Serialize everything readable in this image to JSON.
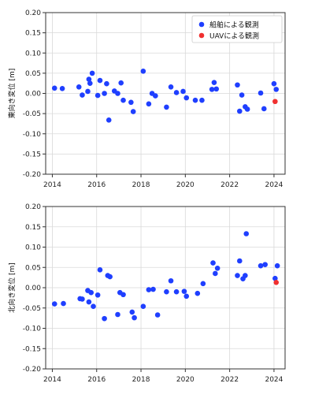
{
  "colors": {
    "ship": "#1f3fff",
    "uav": "#f03030",
    "grid": "#d9d9d9",
    "axis": "#333333"
  },
  "chart_data": [
    {
      "type": "scatter",
      "ylabel": "東向き変位 [m]",
      "xlim": [
        2013.7,
        2024.5
      ],
      "ylim": [
        -0.2,
        0.2
      ],
      "xticks": [
        2014,
        2016,
        2018,
        2020,
        2022,
        2024
      ],
      "yticks": [
        -0.2,
        -0.15,
        -0.1,
        -0.05,
        0.0,
        0.05,
        0.1,
        0.15,
        0.2
      ],
      "grid": true,
      "legend": "top-right",
      "series": [
        {
          "name": "船舶による観測",
          "color": "#1f3fff",
          "points": [
            [
              2014.1,
              0.013
            ],
            [
              2014.45,
              0.012
            ],
            [
              2015.2,
              0.016
            ],
            [
              2015.35,
              -0.004
            ],
            [
              2015.6,
              0.005
            ],
            [
              2015.65,
              0.035
            ],
            [
              2015.7,
              0.025
            ],
            [
              2015.8,
              0.05
            ],
            [
              2016.05,
              -0.005
            ],
            [
              2016.15,
              0.032
            ],
            [
              2016.35,
              0.0
            ],
            [
              2016.45,
              0.024
            ],
            [
              2016.55,
              -0.066
            ],
            [
              2016.8,
              0.006
            ],
            [
              2016.95,
              0.0
            ],
            [
              2017.1,
              0.026
            ],
            [
              2017.2,
              -0.017
            ],
            [
              2017.55,
              -0.022
            ],
            [
              2017.65,
              -0.045
            ],
            [
              2018.1,
              0.055
            ],
            [
              2018.35,
              -0.026
            ],
            [
              2018.5,
              0.0
            ],
            [
              2018.65,
              -0.006
            ],
            [
              2019.15,
              -0.034
            ],
            [
              2019.35,
              0.016
            ],
            [
              2019.6,
              0.002
            ],
            [
              2019.9,
              0.005
            ],
            [
              2020.05,
              -0.011
            ],
            [
              2020.45,
              -0.017
            ],
            [
              2020.75,
              -0.017
            ],
            [
              2021.2,
              0.01
            ],
            [
              2021.3,
              0.027
            ],
            [
              2021.4,
              0.011
            ],
            [
              2022.35,
              0.021
            ],
            [
              2022.45,
              -0.044
            ],
            [
              2022.55,
              -0.004
            ],
            [
              2022.7,
              -0.033
            ],
            [
              2022.8,
              -0.039
            ],
            [
              2023.4,
              0.001
            ],
            [
              2023.55,
              -0.038
            ],
            [
              2024.0,
              0.024
            ],
            [
              2024.1,
              0.01
            ]
          ]
        },
        {
          "name": "UAVによる観測",
          "color": "#f03030",
          "points": [
            [
              2024.05,
              -0.02
            ]
          ]
        }
      ]
    },
    {
      "type": "scatter",
      "ylabel": "北向き変位 [m]",
      "xlim": [
        2013.7,
        2024.5
      ],
      "ylim": [
        -0.2,
        0.2
      ],
      "xticks": [
        2014,
        2016,
        2018,
        2020,
        2022,
        2024
      ],
      "yticks": [
        -0.2,
        -0.15,
        -0.1,
        -0.05,
        0.0,
        0.05,
        0.1,
        0.15,
        0.2
      ],
      "grid": true,
      "legend": "none",
      "series": [
        {
          "name": "船舶による観測",
          "color": "#1f3fff",
          "points": [
            [
              2014.1,
              -0.04
            ],
            [
              2014.5,
              -0.039
            ],
            [
              2015.25,
              -0.027
            ],
            [
              2015.35,
              -0.028
            ],
            [
              2015.6,
              -0.007
            ],
            [
              2015.65,
              -0.035
            ],
            [
              2015.75,
              -0.012
            ],
            [
              2015.85,
              -0.046
            ],
            [
              2016.05,
              -0.018
            ],
            [
              2016.15,
              0.044
            ],
            [
              2016.35,
              -0.076
            ],
            [
              2016.5,
              0.03
            ],
            [
              2016.6,
              0.027
            ],
            [
              2016.95,
              -0.066
            ],
            [
              2017.05,
              -0.012
            ],
            [
              2017.2,
              -0.017
            ],
            [
              2017.6,
              -0.06
            ],
            [
              2017.7,
              -0.074
            ],
            [
              2018.1,
              -0.046
            ],
            [
              2018.35,
              -0.005
            ],
            [
              2018.55,
              -0.004
            ],
            [
              2018.75,
              -0.067
            ],
            [
              2019.15,
              -0.01
            ],
            [
              2019.35,
              0.017
            ],
            [
              2019.6,
              -0.01
            ],
            [
              2019.95,
              -0.009
            ],
            [
              2020.05,
              -0.021
            ],
            [
              2020.55,
              -0.014
            ],
            [
              2020.8,
              0.01
            ],
            [
              2021.25,
              0.061
            ],
            [
              2021.35,
              0.035
            ],
            [
              2021.45,
              0.048
            ],
            [
              2022.35,
              0.03
            ],
            [
              2022.45,
              0.066
            ],
            [
              2022.6,
              0.022
            ],
            [
              2022.7,
              0.03
            ],
            [
              2022.75,
              0.133
            ],
            [
              2023.4,
              0.054
            ],
            [
              2023.6,
              0.057
            ],
            [
              2024.05,
              0.023
            ],
            [
              2024.15,
              0.054
            ]
          ]
        },
        {
          "name": "UAVによる観測",
          "color": "#f03030",
          "points": [
            [
              2024.1,
              0.013
            ]
          ]
        }
      ]
    }
  ]
}
